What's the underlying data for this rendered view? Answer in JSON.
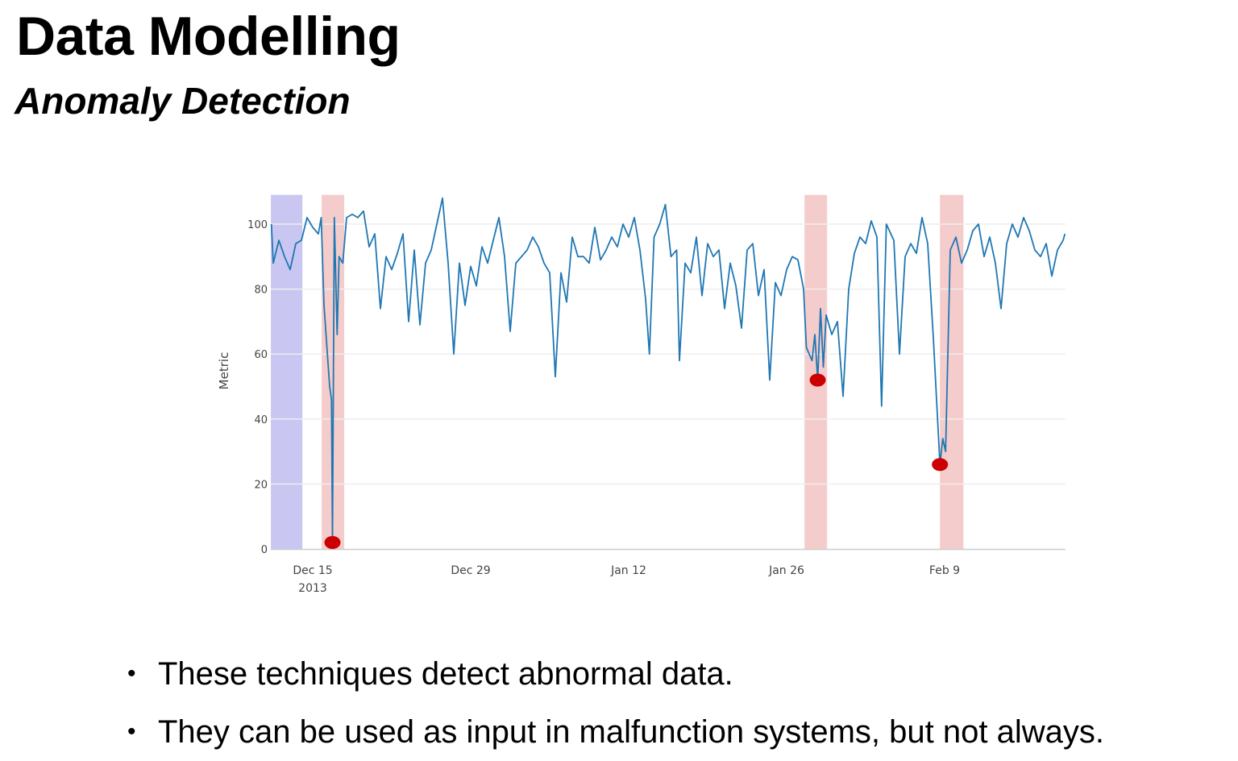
{
  "slide": {
    "title": "Data Modelling",
    "subtitle": "Anomaly Detection",
    "bullets": [
      "These techniques detect abnormal data.",
      "They can be used as input in malfunction systems, but not always."
    ]
  },
  "chart_data": {
    "type": "line",
    "title": "",
    "xlabel": "",
    "ylabel": "Metric",
    "ylim": [
      0,
      109
    ],
    "xlim": [
      "2013-12-11T07:00",
      "2014-02-19T17:00"
    ],
    "grid": true,
    "yticks": [
      0,
      20,
      40,
      60,
      80,
      100
    ],
    "xticks": [
      {
        "date": "2013-12-15",
        "label": "Dec 15",
        "sublabel": "2013"
      },
      {
        "date": "2013-12-29",
        "label": "Dec 29",
        "sublabel": ""
      },
      {
        "date": "2014-01-12",
        "label": "Jan 12",
        "sublabel": ""
      },
      {
        "date": "2014-01-26",
        "label": "Jan 26",
        "sublabel": ""
      },
      {
        "date": "2014-02-09",
        "label": "Feb 9",
        "sublabel": ""
      }
    ],
    "colors": {
      "line": "#1f77b4",
      "anomaly": "#cc0000",
      "training_region": "#c9c6f2",
      "anomaly_region": "#f5cccc",
      "grid": "#eeeeee"
    },
    "shaded_regions": [
      {
        "kind": "training",
        "start": "2013-12-11T07:00",
        "end": "2013-12-14T02:00"
      },
      {
        "kind": "anomaly",
        "start": "2013-12-15T19:00",
        "end": "2013-12-17T19:00"
      },
      {
        "kind": "anomaly",
        "start": "2014-01-27T14:00",
        "end": "2014-01-29T14:00"
      },
      {
        "kind": "anomaly",
        "start": "2014-02-08T14:00",
        "end": "2014-02-10T16:00"
      }
    ],
    "anomalies": [
      {
        "x": "2013-12-16T18:00",
        "y": 2
      },
      {
        "x": "2014-01-28T18:00",
        "y": 52
      },
      {
        "x": "2014-02-08T14:00",
        "y": 26
      }
    ],
    "series": [
      {
        "x": [
          "2013-12-11T08:00",
          "2013-12-11T12:00",
          "2013-12-12T00:00",
          "2013-12-12T12:00",
          "2013-12-13T00:00",
          "2013-12-13T12:00",
          "2013-12-14T00:00",
          "2013-12-14T12:00",
          "2013-12-15T00:00",
          "2013-12-15T12:00",
          "2013-12-15T18:00",
          "2013-12-16T00:00",
          "2013-12-16T12:00",
          "2013-12-16T16:00",
          "2013-12-16T18:00",
          "2013-12-16T22:00",
          "2013-12-17T04:00",
          "2013-12-17T08:00",
          "2013-12-17T16:00",
          "2013-12-18T00:00",
          "2013-12-18T12:00",
          "2013-12-19T00:00",
          "2013-12-19T12:00",
          "2013-12-20T00:00",
          "2013-12-20T12:00",
          "2013-12-21T00:00",
          "2013-12-21T12:00",
          "2013-12-22T00:00",
          "2013-12-22T12:00",
          "2013-12-23T00:00",
          "2013-12-23T12:00",
          "2013-12-24T00:00",
          "2013-12-24T12:00",
          "2013-12-25T00:00",
          "2013-12-25T12:00",
          "2013-12-26T00:00",
          "2013-12-26T12:00",
          "2013-12-27T00:00",
          "2013-12-27T12:00",
          "2013-12-28T00:00",
          "2013-12-28T12:00",
          "2013-12-29T00:00",
          "2013-12-29T12:00",
          "2013-12-30T00:00",
          "2013-12-30T12:00",
          "2013-12-31T00:00",
          "2013-12-31T12:00",
          "2014-01-01T00:00",
          "2014-01-01T12:00",
          "2014-01-02T00:00",
          "2014-01-02T12:00",
          "2014-01-03T00:00",
          "2014-01-03T12:00",
          "2014-01-04T00:00",
          "2014-01-04T12:00",
          "2014-01-05T00:00",
          "2014-01-05T12:00",
          "2014-01-06T00:00",
          "2014-01-06T12:00",
          "2014-01-07T00:00",
          "2014-01-07T12:00",
          "2014-01-08T00:00",
          "2014-01-08T12:00",
          "2014-01-09T00:00",
          "2014-01-09T12:00",
          "2014-01-10T00:00",
          "2014-01-10T12:00",
          "2014-01-11T00:00",
          "2014-01-11T12:00",
          "2014-01-12T00:00",
          "2014-01-12T12:00",
          "2014-01-13T00:00",
          "2014-01-13T12:00",
          "2014-01-13T20:00",
          "2014-01-14T06:00",
          "2014-01-14T18:00",
          "2014-01-15T06:00",
          "2014-01-15T18:00",
          "2014-01-16T06:00",
          "2014-01-16T12:00",
          "2014-01-17T00:00",
          "2014-01-17T12:00",
          "2014-01-18T00:00",
          "2014-01-18T12:00",
          "2014-01-19T00:00",
          "2014-01-19T12:00",
          "2014-01-20T00:00",
          "2014-01-20T12:00",
          "2014-01-21T00:00",
          "2014-01-21T12:00",
          "2014-01-22T00:00",
          "2014-01-22T12:00",
          "2014-01-23T00:00",
          "2014-01-23T12:00",
          "2014-01-24T00:00",
          "2014-01-24T12:00",
          "2014-01-25T00:00",
          "2014-01-25T12:00",
          "2014-01-26T00:00",
          "2014-01-26T12:00",
          "2014-01-27T00:00",
          "2014-01-27T12:00",
          "2014-01-27T18:00",
          "2014-01-28T06:00",
          "2014-01-28T12:00",
          "2014-01-28T18:00",
          "2014-01-29T00:00",
          "2014-01-29T06:00",
          "2014-01-29T12:00",
          "2014-01-30T00:00",
          "2014-01-30T12:00",
          "2014-01-31T00:00",
          "2014-01-31T12:00",
          "2014-02-01T00:00",
          "2014-02-01T12:00",
          "2014-02-02T00:00",
          "2014-02-02T12:00",
          "2014-02-03T00:00",
          "2014-02-03T10:00",
          "2014-02-03T20:00",
          "2014-02-04T12:00",
          "2014-02-05T00:00",
          "2014-02-05T12:00",
          "2014-02-06T00:00",
          "2014-02-06T12:00",
          "2014-02-07T00:00",
          "2014-02-07T12:00",
          "2014-02-08T00:00",
          "2014-02-08T14:00",
          "2014-02-08T20:00",
          "2014-02-09T02:00",
          "2014-02-09T12:00",
          "2014-02-10T00:00",
          "2014-02-10T12:00",
          "2014-02-11T00:00",
          "2014-02-11T12:00",
          "2014-02-12T00:00",
          "2014-02-12T12:00",
          "2014-02-13T00:00",
          "2014-02-13T12:00",
          "2014-02-14T00:00",
          "2014-02-14T12:00",
          "2014-02-15T00:00",
          "2014-02-15T12:00",
          "2014-02-16T00:00",
          "2014-02-16T12:00",
          "2014-02-17T00:00",
          "2014-02-17T12:00",
          "2014-02-18T00:00",
          "2014-02-18T12:00",
          "2014-02-19T00:00",
          "2014-02-19T12:00",
          "2014-02-19T16:00"
        ],
        "y": [
          100,
          88,
          95,
          90,
          86,
          94,
          95,
          102,
          99,
          97,
          102,
          75,
          50,
          46,
          2,
          102,
          66,
          90,
          88,
          102,
          103,
          102,
          104,
          93,
          97,
          74,
          90,
          86,
          91,
          97,
          70,
          92,
          69,
          88,
          92,
          100,
          108,
          88,
          60,
          88,
          75,
          87,
          81,
          93,
          88,
          95,
          102,
          90,
          67,
          88,
          90,
          92,
          96,
          93,
          88,
          85,
          53,
          85,
          76,
          96,
          90,
          90,
          88,
          99,
          89,
          92,
          96,
          93,
          100,
          96,
          102,
          92,
          77,
          60,
          96,
          100,
          106,
          90,
          92,
          58,
          88,
          85,
          96,
          78,
          94,
          90,
          92,
          74,
          88,
          81,
          68,
          92,
          94,
          78,
          86,
          52,
          82,
          78,
          86,
          90,
          89,
          80,
          62,
          58,
          66,
          52,
          74,
          56,
          72,
          66,
          70,
          47,
          80,
          91,
          96,
          94,
          101,
          96,
          44,
          100,
          95,
          60,
          90,
          94,
          91,
          102,
          94,
          65,
          26,
          34,
          30,
          92,
          96,
          88,
          92,
          98,
          100,
          90,
          96,
          88,
          74,
          94,
          100,
          96,
          102,
          98,
          92,
          90,
          94,
          84,
          92,
          95,
          97
        ]
      }
    ]
  }
}
